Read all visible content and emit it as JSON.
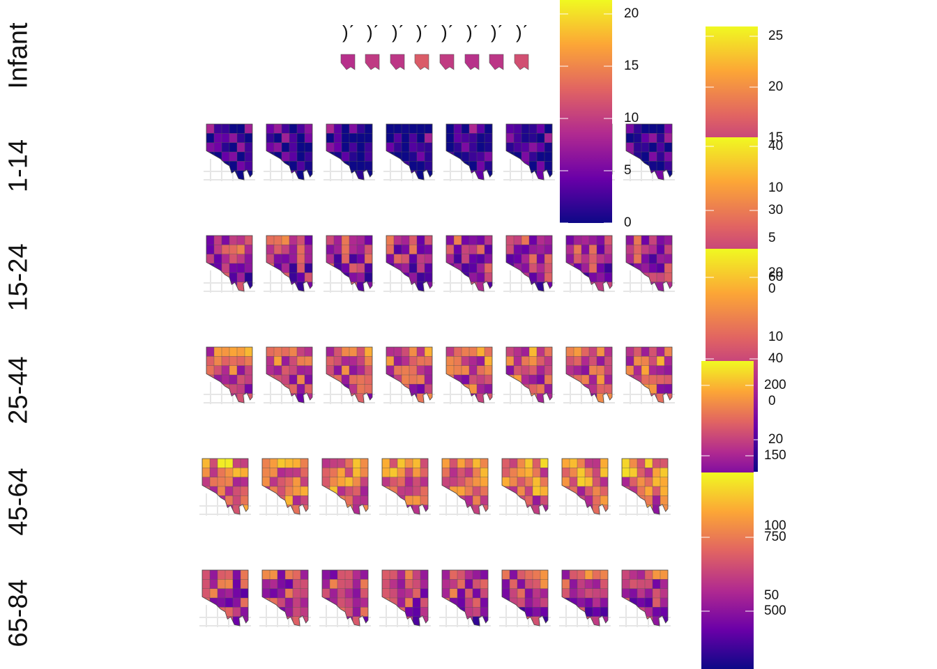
{
  "chart_data": {
    "type": "heatmap",
    "description_kind": "small-multiple choropleth maps faceted by age group and period",
    "colormap": "plasma",
    "colormap_stops": [
      "#0d0887",
      "#6a00a8",
      "#b12a90",
      "#e16462",
      "#fca636",
      "#f0f921"
    ],
    "rows": [
      "Infant",
      "1-14",
      "15-24",
      "25-44",
      "45-64",
      "65-84"
    ],
    "columns_per_row": 8,
    "row_intensity": [
      0.35,
      0.12,
      0.45,
      0.6,
      0.7,
      0.5
    ],
    "legends": [
      {
        "name": "legend-a",
        "ticks": [
          "0",
          "5",
          "10",
          "15",
          "20"
        ]
      },
      {
        "name": "legend-b",
        "ticks": [
          "25",
          "20",
          "15",
          "10",
          "5",
          "0"
        ]
      },
      {
        "name": "legend-c",
        "ticks": [
          "40",
          "30",
          "20",
          "10",
          "0"
        ]
      },
      {
        "name": "legend-d",
        "ticks": [
          "60",
          "40",
          "20"
        ]
      },
      {
        "name": "legend-e",
        "ticks": [
          "200",
          "150",
          "100",
          "50"
        ]
      },
      {
        "name": "legend-f",
        "ticks": [
          "750",
          "500"
        ]
      }
    ]
  }
}
